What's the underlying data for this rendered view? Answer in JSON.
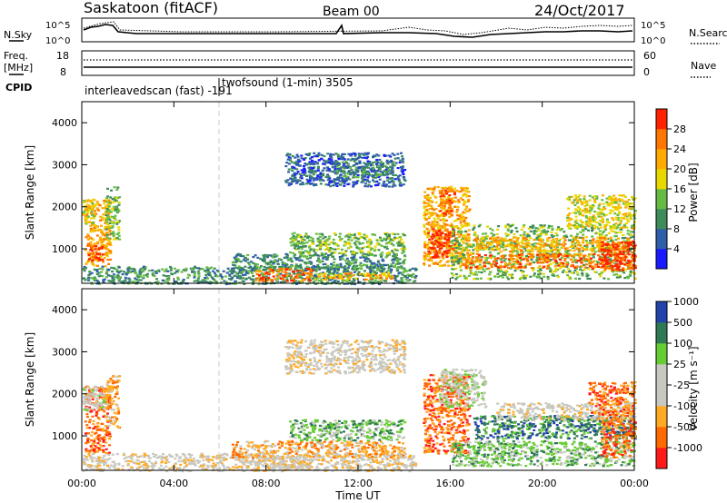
{
  "header": {
    "station": "Saskatoon (fitACF)",
    "beam": "Beam 00",
    "date": "24/Oct/2017"
  },
  "noise_panel": {
    "left_label": "N.Sky",
    "right_label": "N.Search",
    "left_ticks": [
      "10^5",
      "10^0"
    ],
    "right_ticks": [
      "10^5",
      "10^0"
    ]
  },
  "freq_panel": {
    "left_label_1": "Freq.",
    "left_label_2": "[MHz]",
    "right_label": "Nave",
    "left_ticks": [
      "18",
      "8"
    ],
    "right_ticks": [
      "60",
      "0"
    ]
  },
  "cpid": {
    "label": "CPID",
    "entries": [
      {
        "text": "interleavedscan (fast)  -191",
        "start_hour": 0
      },
      {
        "text": "twofsound (1-min) 3505",
        "start_hour": 6.0
      }
    ]
  },
  "colors": {
    "power": [
      "#1a1aff",
      "#2f5fa8",
      "#3d8c5a",
      "#66bb44",
      "#e8d800",
      "#ffaa00",
      "#ff7700",
      "#ff2200"
    ],
    "velocity": [
      "#ff1a1a",
      "#ff6a00",
      "#ffaa22",
      "#c8c8c0",
      "#c8c8c0",
      "#66cc33",
      "#2f7a55",
      "#2244aa"
    ]
  },
  "chart_data": [
    {
      "type": "heatmap",
      "quantity": "power",
      "ylabel": "Slant Range [km]",
      "ylim": [
        180,
        4500
      ],
      "yticks": [
        "1000",
        "2000",
        "3000",
        "4000"
      ],
      "xlim_hours": [
        0,
        24
      ],
      "colorbar_label": "Power [dB]",
      "colorbar_ticks": [
        "4",
        "8",
        "12",
        "16",
        "20",
        "24",
        "28"
      ],
      "colorbar_range": [
        0,
        32
      ],
      "regions": [
        {
          "t0": 0.1,
          "t1": 1.2,
          "r0": 600,
          "r1": 2200,
          "level": 5
        },
        {
          "t0": 0.2,
          "t1": 0.9,
          "r0": 700,
          "r1": 1100,
          "level": 7
        },
        {
          "t0": 1.0,
          "t1": 1.6,
          "r0": 1200,
          "r1": 2500,
          "level": 3
        },
        {
          "t0": 0.0,
          "t1": 0.5,
          "r0": 1600,
          "r1": 2200,
          "level": 4
        },
        {
          "t0": 0.0,
          "t1": 14.5,
          "r0": 180,
          "r1": 600,
          "level": 2
        },
        {
          "t0": 6.5,
          "t1": 14.0,
          "r0": 500,
          "r1": 900,
          "level": 2
        },
        {
          "t0": 9.0,
          "t1": 14.0,
          "r0": 900,
          "r1": 1400,
          "level": 3
        },
        {
          "t0": 7.5,
          "t1": 10.0,
          "r0": 250,
          "r1": 550,
          "level": 6
        },
        {
          "t0": 10.0,
          "t1": 13.5,
          "r0": 280,
          "r1": 450,
          "level": 5
        },
        {
          "t0": 8.8,
          "t1": 14.0,
          "r0": 2500,
          "r1": 3300,
          "level": 1
        },
        {
          "t0": 11.0,
          "t1": 13.5,
          "r0": 2700,
          "r1": 3100,
          "level": 2
        },
        {
          "t0": 14.8,
          "t1": 16.8,
          "r0": 600,
          "r1": 2500,
          "level": 5
        },
        {
          "t0": 15.0,
          "t1": 16.2,
          "r0": 800,
          "r1": 1500,
          "level": 7
        },
        {
          "t0": 15.5,
          "t1": 16.2,
          "r0": 1800,
          "r1": 2400,
          "level": 6
        },
        {
          "t0": 16.0,
          "t1": 24.0,
          "r0": 300,
          "r1": 1600,
          "level": 3
        },
        {
          "t0": 16.5,
          "t1": 24.0,
          "r0": 550,
          "r1": 900,
          "level": 6
        },
        {
          "t0": 17.0,
          "t1": 23.8,
          "r0": 950,
          "r1": 1300,
          "level": 5
        },
        {
          "t0": 21.0,
          "t1": 24.0,
          "r0": 1500,
          "r1": 2300,
          "level": 4
        },
        {
          "t0": 22.5,
          "t1": 24.0,
          "r0": 500,
          "r1": 1200,
          "level": 7
        }
      ]
    },
    {
      "type": "heatmap",
      "quantity": "velocity",
      "ylabel": "Slant Range [km]",
      "ylim": [
        180,
        4500
      ],
      "yticks": [
        "1000",
        "2000",
        "3000",
        "4000"
      ],
      "xlim_hours": [
        0,
        24
      ],
      "xticks": [
        "00:00",
        "04:00",
        "08:00",
        "12:00",
        "16:00",
        "20:00",
        "00:00"
      ],
      "xlabel": "Time UT",
      "colorbar_label": "Velocity [m s⁻¹]",
      "colorbar_ticks": [
        "-1000",
        "-500",
        "-100",
        "-25",
        "25",
        "100",
        "500",
        "1000"
      ],
      "regions": [
        {
          "t0": 0.1,
          "t1": 1.2,
          "r0": 600,
          "r1": 2200,
          "level": 1
        },
        {
          "t0": 0.0,
          "t1": 1.0,
          "r0": 1600,
          "r1": 2200,
          "level": 4
        },
        {
          "t0": 1.0,
          "t1": 1.6,
          "r0": 1200,
          "r1": 2500,
          "level": 2
        },
        {
          "t0": 0.0,
          "t1": 14.5,
          "r0": 180,
          "r1": 600,
          "level": 3
        },
        {
          "t0": 6.5,
          "t1": 14.0,
          "r0": 500,
          "r1": 900,
          "level": 2
        },
        {
          "t0": 9.0,
          "t1": 14.0,
          "r0": 900,
          "r1": 1400,
          "level": 5
        },
        {
          "t0": 7.5,
          "t1": 10.0,
          "r0": 250,
          "r1": 550,
          "level": 3
        },
        {
          "t0": 8.8,
          "t1": 14.0,
          "r0": 2500,
          "r1": 3300,
          "level": 3
        },
        {
          "t0": 14.8,
          "t1": 16.8,
          "r0": 600,
          "r1": 2500,
          "level": 1
        },
        {
          "t0": 15.5,
          "t1": 17.5,
          "r0": 1700,
          "r1": 2600,
          "level": 4
        },
        {
          "t0": 16.0,
          "t1": 24.0,
          "r0": 300,
          "r1": 900,
          "level": 5
        },
        {
          "t0": 17.0,
          "t1": 24.0,
          "r0": 950,
          "r1": 1500,
          "level": 6
        },
        {
          "t0": 18.0,
          "t1": 24.0,
          "r0": 1400,
          "r1": 1800,
          "level": 3
        },
        {
          "t0": 22.5,
          "t1": 24.0,
          "r0": 500,
          "r1": 1500,
          "level": 1
        },
        {
          "t0": 22.0,
          "t1": 24.0,
          "r0": 1500,
          "r1": 2300,
          "level": 1
        }
      ]
    }
  ]
}
